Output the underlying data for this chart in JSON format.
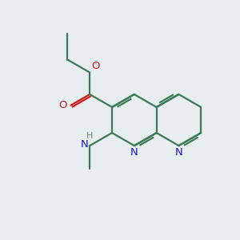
{
  "background_color": "#e8edf0",
  "bond_color": "#3a7a55",
  "n_color": "#1a1acc",
  "o_color": "#cc1a1a",
  "h_color": "#5a8a6a",
  "lw": 1.6,
  "figsize": [
    3.0,
    3.0
  ],
  "dpi": 100,
  "xlim": [
    0,
    10
  ],
  "ylim": [
    0,
    10
  ]
}
